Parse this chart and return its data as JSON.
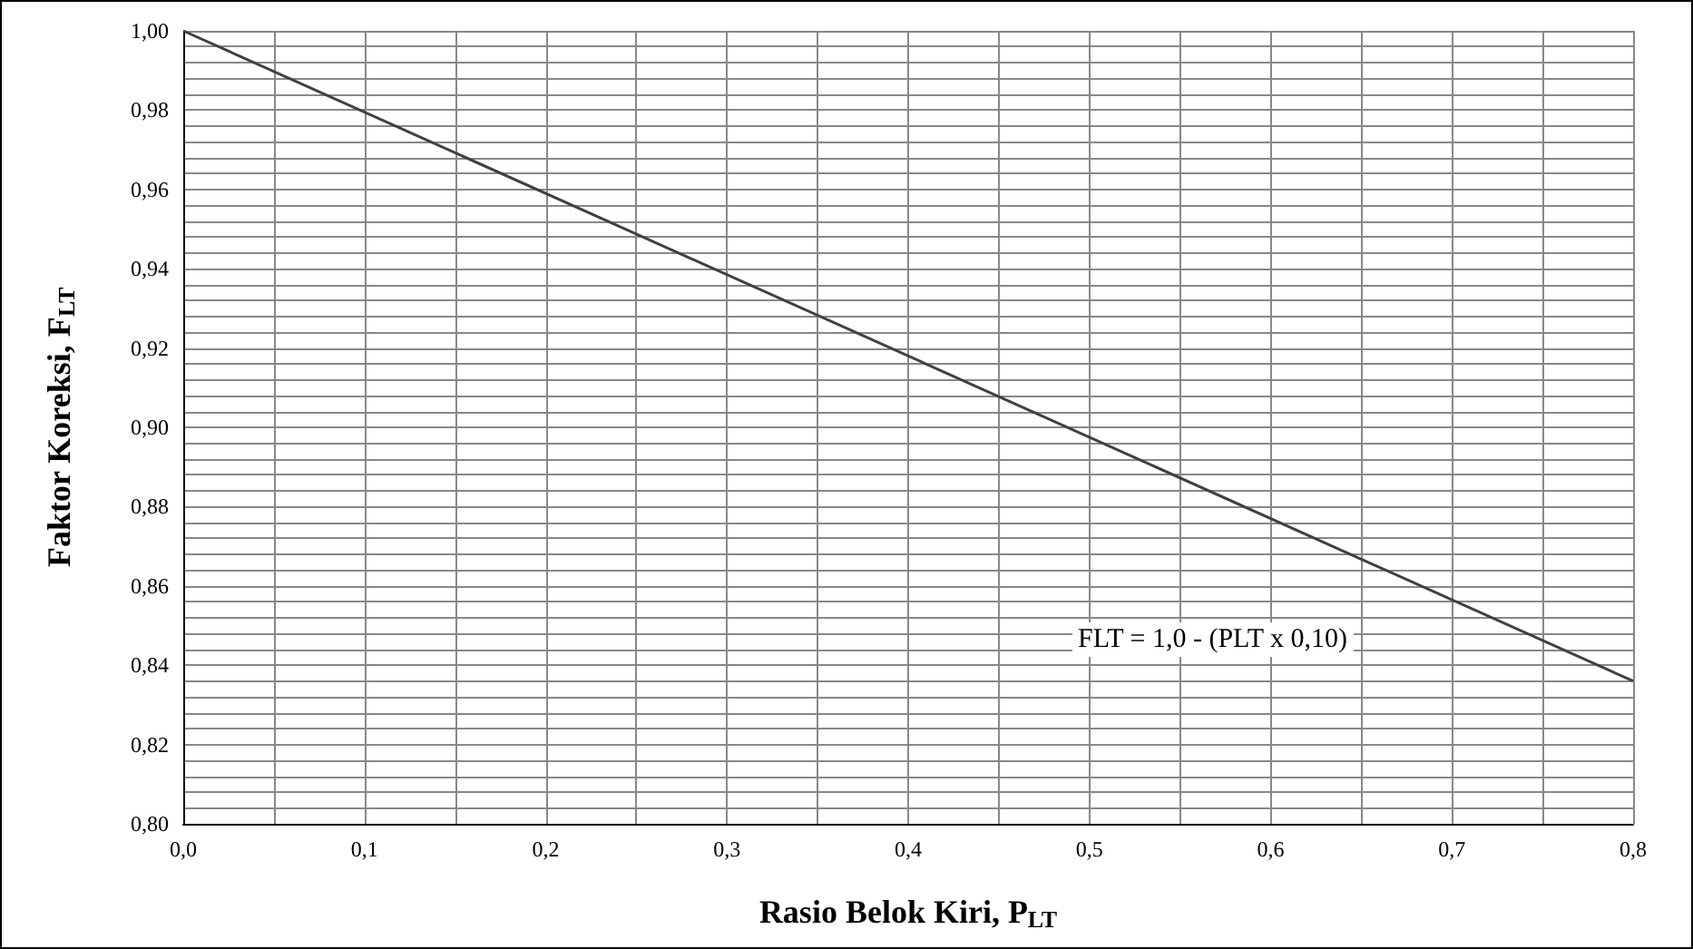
{
  "chart_data": {
    "type": "line",
    "xlabel": "Rasio Belok Kiri, P$_{LT}$",
    "ylabel": "Faktor Koreksi, F$_{LT}$",
    "x": [
      0,
      0.8
    ],
    "series": [
      {
        "color": "#404040",
        "values": [
          1.0,
          0.836
        ]
      }
    ],
    "xlim": [
      0,
      0.8
    ],
    "xticks": [
      {
        "value": 0,
        "label": "0,0"
      },
      {
        "value": 0.05,
        "label": null
      },
      {
        "value": 0.1,
        "label": "0,1"
      },
      {
        "value": 0.15,
        "label": null
      },
      {
        "value": 0.2,
        "label": "0,2"
      },
      {
        "value": 0.25,
        "label": null
      },
      {
        "value": 0.3,
        "label": "0,3"
      },
      {
        "value": 0.35,
        "label": null
      },
      {
        "value": 0.4,
        "label": "0,4"
      },
      {
        "value": 0.45,
        "label": null
      },
      {
        "value": 0.5,
        "label": "0,5"
      },
      {
        "value": 0.55,
        "label": null
      },
      {
        "value": 0.6,
        "label": "0,6"
      },
      {
        "value": 0.65,
        "label": null
      },
      {
        "value": 0.7,
        "label": "0,7"
      },
      {
        "value": 0.75,
        "label": null
      },
      {
        "value": 0.8,
        "label": "0,8"
      }
    ],
    "ylim": [
      0.8,
      1.0
    ],
    "yticks": [
      {
        "value": 0.8,
        "label": "0,80"
      },
      {
        "value": 0.804,
        "label": null
      },
      {
        "value": 0.808,
        "label": null
      },
      {
        "value": 0.812,
        "label": null
      },
      {
        "value": 0.816,
        "label": null
      },
      {
        "value": 0.82,
        "label": "0,82"
      },
      {
        "value": 0.824,
        "label": null
      },
      {
        "value": 0.828,
        "label": null
      },
      {
        "value": 0.832,
        "label": null
      },
      {
        "value": 0.836,
        "label": null
      },
      {
        "value": 0.84,
        "label": "0,84"
      },
      {
        "value": 0.844,
        "label": null
      },
      {
        "value": 0.848,
        "label": null
      },
      {
        "value": 0.852,
        "label": null
      },
      {
        "value": 0.856,
        "label": null
      },
      {
        "value": 0.86,
        "label": "0,86"
      },
      {
        "value": 0.864,
        "label": null
      },
      {
        "value": 0.868,
        "label": null
      },
      {
        "value": 0.872,
        "label": null
      },
      {
        "value": 0.876,
        "label": null
      },
      {
        "value": 0.88,
        "label": "0,88"
      },
      {
        "value": 0.884,
        "label": null
      },
      {
        "value": 0.888,
        "label": null
      },
      {
        "value": 0.892,
        "label": null
      },
      {
        "value": 0.896,
        "label": null
      },
      {
        "value": 0.9,
        "label": "0,90"
      },
      {
        "value": 0.904,
        "label": null
      },
      {
        "value": 0.908,
        "label": null
      },
      {
        "value": 0.912,
        "label": null
      },
      {
        "value": 0.916,
        "label": null
      },
      {
        "value": 0.92,
        "label": "0,92"
      },
      {
        "value": 0.924,
        "label": null
      },
      {
        "value": 0.928,
        "label": null
      },
      {
        "value": 0.932,
        "label": null
      },
      {
        "value": 0.936,
        "label": null
      },
      {
        "value": 0.94,
        "label": "0,94"
      },
      {
        "value": 0.944,
        "label": null
      },
      {
        "value": 0.948,
        "label": null
      },
      {
        "value": 0.952,
        "label": null
      },
      {
        "value": 0.956,
        "label": null
      },
      {
        "value": 0.96,
        "label": "0,96"
      },
      {
        "value": 0.964,
        "label": null
      },
      {
        "value": 0.968,
        "label": null
      },
      {
        "value": 0.972,
        "label": null
      },
      {
        "value": 0.976,
        "label": null
      },
      {
        "value": 0.98,
        "label": "0,98"
      },
      {
        "value": 0.984,
        "label": null
      },
      {
        "value": 0.988,
        "label": null
      },
      {
        "value": 0.992,
        "label": null
      },
      {
        "value": 0.996,
        "label": null
      },
      {
        "value": 1.0,
        "label": "1,00"
      }
    ],
    "grid": true,
    "annotations": [
      "FLT = 1,0 - (PLT x 0,10)"
    ]
  }
}
